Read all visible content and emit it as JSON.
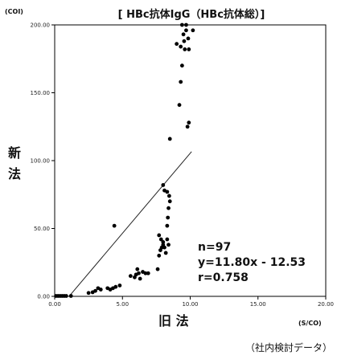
{
  "chart_data": {
    "type": "scatter",
    "title": "[ HBc抗体IgG（HBc抗体総）]",
    "ylabel_unit": "(COI)",
    "xlabel_unit": "(S/CO)",
    "ylabel": "新 法",
    "xlabel": "旧 法",
    "source": "（社内検討データ）",
    "xlim": [
      0,
      20
    ],
    "ylim": [
      0,
      200
    ],
    "xticks": [
      "0.00",
      "5.00",
      "10.00",
      "15.00",
      "20.00"
    ],
    "yticks": [
      "0.00",
      "50.00",
      "100.00",
      "150.00",
      "200.00"
    ],
    "stats": {
      "n": "n=97",
      "equation": "y=11.80x - 12.53",
      "r": "r=0.758"
    },
    "regression": {
      "slope": 11.8,
      "intercept": -12.53,
      "x_range": [
        1.06,
        10.1
      ]
    },
    "points": [
      [
        0.1,
        0.3
      ],
      [
        0.25,
        0.3
      ],
      [
        0.4,
        0.3
      ],
      [
        0.55,
        0.3
      ],
      [
        0.7,
        0.3
      ],
      [
        0.85,
        0.3
      ],
      [
        1.2,
        0.3
      ],
      [
        2.5,
        2.5
      ],
      [
        2.8,
        3
      ],
      [
        3.0,
        4
      ],
      [
        3.2,
        6
      ],
      [
        3.4,
        5
      ],
      [
        3.9,
        6
      ],
      [
        4.1,
        5
      ],
      [
        4.3,
        6
      ],
      [
        4.5,
        7
      ],
      [
        4.8,
        8
      ],
      [
        4.4,
        52
      ],
      [
        5.6,
        15
      ],
      [
        5.9,
        14
      ],
      [
        6.0,
        16
      ],
      [
        6.2,
        17
      ],
      [
        6.1,
        20
      ],
      [
        6.3,
        13
      ],
      [
        6.5,
        18
      ],
      [
        6.7,
        17
      ],
      [
        6.9,
        17
      ],
      [
        7.6,
        20
      ],
      [
        7.7,
        30
      ],
      [
        7.8,
        34
      ],
      [
        7.9,
        36
      ],
      [
        8.0,
        38
      ],
      [
        8.1,
        36
      ],
      [
        8.2,
        32
      ],
      [
        7.85,
        42
      ],
      [
        8.0,
        40
      ],
      [
        8.3,
        42
      ],
      [
        8.4,
        38
      ],
      [
        7.7,
        45
      ],
      [
        8.3,
        52
      ],
      [
        8.35,
        58
      ],
      [
        8.4,
        65
      ],
      [
        8.5,
        70
      ],
      [
        8.45,
        74
      ],
      [
        8.1,
        78
      ],
      [
        8.3,
        77
      ],
      [
        8.0,
        82
      ],
      [
        8.5,
        116
      ],
      [
        9.2,
        141
      ],
      [
        9.3,
        158
      ],
      [
        9.4,
        170
      ],
      [
        9.8,
        125
      ],
      [
        9.9,
        128
      ],
      [
        9.0,
        186
      ],
      [
        9.3,
        184
      ],
      [
        9.6,
        182
      ],
      [
        9.9,
        182
      ],
      [
        9.55,
        188
      ],
      [
        9.85,
        190
      ],
      [
        9.5,
        193
      ],
      [
        9.7,
        196
      ],
      [
        10.2,
        196
      ],
      [
        9.4,
        200
      ],
      [
        9.7,
        200
      ]
    ]
  }
}
